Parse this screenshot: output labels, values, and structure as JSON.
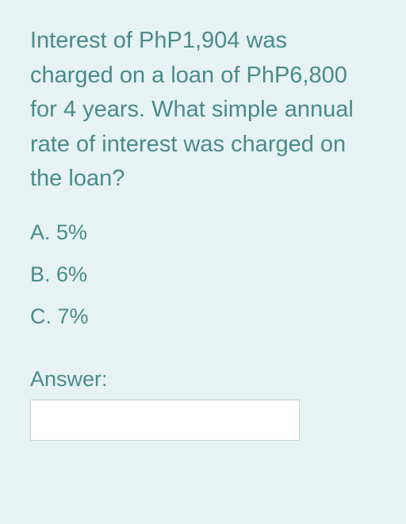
{
  "question": {
    "text": "Interest of PhP1,904 was charged on a loan of PhP6,800 for 4 years.  What simple annual rate of interest was charged on the loan?",
    "text_color": "#4a8b8a",
    "fontsize": 29
  },
  "options": [
    {
      "label": "A.  5%"
    },
    {
      "label": "B.  6%"
    },
    {
      "label": "C.  7%"
    }
  ],
  "answer": {
    "label": "Answer:",
    "value": "",
    "placeholder": ""
  },
  "styling": {
    "background_color": "#e6f3f2",
    "text_color": "#4a8b8a",
    "option_fontsize": 27,
    "input_background": "#ffffff",
    "input_border_color": "#d0d0d0",
    "input_width": 340,
    "input_height": 52
  }
}
